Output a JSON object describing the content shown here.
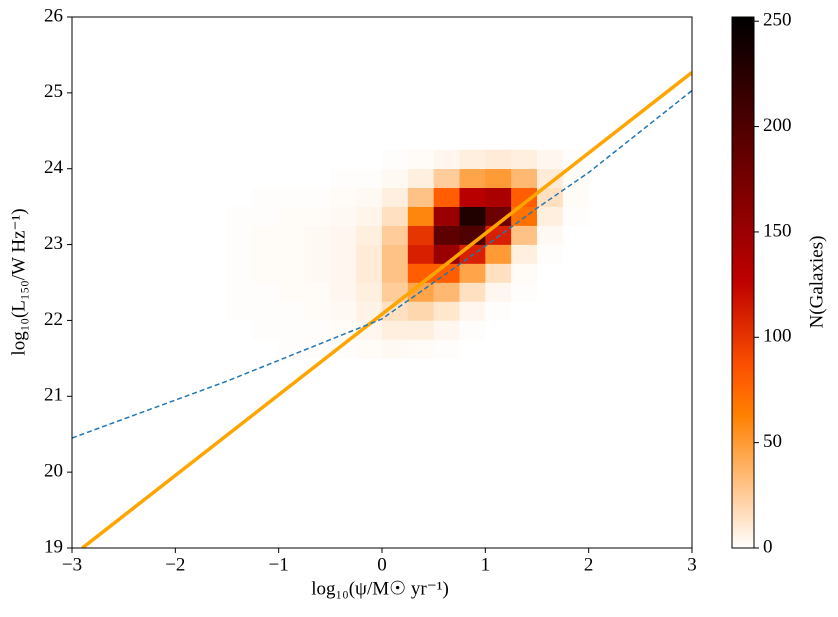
{
  "chart_data": {
    "type": "hist2d",
    "xlabel": "log₁₀(ψ/M☉ yr⁻¹)",
    "ylabel": "log₁₀(L₁₅₀/W Hz⁻¹)",
    "colorbar_label": "N(Galaxies)",
    "colormap": "gist_heat_r",
    "clim": [
      0,
      252
    ],
    "cticks": [
      0,
      50,
      100,
      150,
      200,
      250
    ],
    "xlim": [
      -3,
      3
    ],
    "ylim": [
      19,
      26
    ],
    "xticks": [
      {
        "value": -3,
        "label": "−3"
      },
      {
        "value": -2,
        "label": "−2"
      },
      {
        "value": -1,
        "label": "−1"
      },
      0,
      1,
      2,
      3
    ],
    "yticks": [
      19,
      20,
      21,
      22,
      23,
      24,
      25,
      26
    ],
    "xbins": [
      -1.5,
      -1.25,
      -1,
      -0.75,
      -0.5,
      -0.25,
      0,
      0.25,
      0.5,
      0.75,
      1,
      1.25,
      1.5,
      1.75,
      2,
      2.25
    ],
    "ybins": [
      21.5,
      21.75,
      22,
      22.25,
      22.5,
      22.75,
      23,
      23.25,
      23.5,
      23.75,
      24,
      24.25
    ],
    "counts": [
      [
        0,
        0,
        1,
        1,
        1,
        2,
        3,
        2,
        1,
        0,
        0,
        0,
        0,
        0,
        0
      ],
      [
        0,
        1,
        1,
        1,
        2,
        4,
        8,
        8,
        4,
        1,
        0,
        0,
        0,
        0,
        0
      ],
      [
        1,
        1,
        1,
        2,
        3,
        6,
        15,
        20,
        12,
        4,
        1,
        0,
        0,
        0,
        0
      ],
      [
        1,
        1,
        2,
        2,
        4,
        8,
        25,
        45,
        35,
        15,
        4,
        1,
        0,
        0,
        0
      ],
      [
        1,
        2,
        2,
        3,
        4,
        10,
        30,
        80,
        80,
        45,
        15,
        2,
        0,
        0,
        0
      ],
      [
        1,
        2,
        2,
        3,
        4,
        10,
        30,
        110,
        150,
        110,
        50,
        8,
        1,
        0,
        0
      ],
      [
        1,
        2,
        2,
        3,
        4,
        8,
        25,
        100,
        190,
        200,
        110,
        30,
        3,
        0,
        0
      ],
      [
        1,
        1,
        2,
        2,
        3,
        5,
        15,
        60,
        150,
        230,
        180,
        70,
        8,
        1,
        0
      ],
      [
        0,
        1,
        1,
        1,
        2,
        3,
        8,
        30,
        80,
        130,
        140,
        80,
        15,
        2,
        0
      ],
      [
        0,
        0,
        0,
        0,
        1,
        1,
        3,
        8,
        25,
        45,
        50,
        35,
        10,
        2,
        0
      ],
      [
        0,
        0,
        0,
        0,
        0,
        0,
        1,
        2,
        4,
        8,
        10,
        8,
        4,
        1,
        0
      ]
    ],
    "lines": [
      {
        "color": "#ffa500",
        "style": "solid",
        "width": 3.5,
        "x": [
          -2.9,
          3
        ],
        "y": [
          19,
          25.27
        ]
      },
      {
        "color": "#1f77b4",
        "style": "dashed",
        "width": 1.5,
        "x": [
          -3,
          -1.5,
          0,
          0.5,
          1,
          1.5,
          2,
          3
        ],
        "y": [
          20.45,
          21.2,
          22.02,
          22.5,
          22.98,
          23.48,
          23.95,
          25.03
        ]
      }
    ]
  }
}
